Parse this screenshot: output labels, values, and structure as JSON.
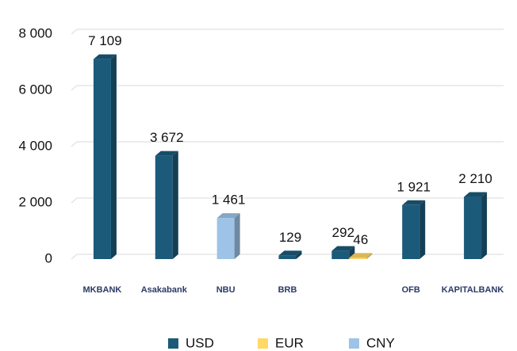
{
  "chart_data": {
    "type": "bar",
    "categories": [
      "MKBANK",
      "Asakabank",
      "NBU",
      "BRB",
      null,
      "OFB",
      "KAPITALBANK"
    ],
    "series": [
      {
        "name": "USD",
        "color": "#1c5a7a",
        "values": [
          7109,
          3672,
          null,
          129,
          292,
          1921,
          2210
        ],
        "value_labels": [
          "7 109",
          "3 672",
          null,
          "129",
          "292",
          "1 921",
          "2 210"
        ]
      },
      {
        "name": "EUR",
        "color": "#ffd966",
        "values": [
          null,
          null,
          null,
          null,
          46,
          null,
          null
        ],
        "value_labels": [
          null,
          null,
          null,
          null,
          "46",
          null,
          null
        ]
      },
      {
        "name": "CNY",
        "color": "#9dc3e6",
        "values": [
          null,
          null,
          1461,
          null,
          null,
          null,
          null
        ],
        "value_labels": [
          null,
          null,
          "1 461",
          null,
          null,
          null,
          null
        ]
      }
    ],
    "ylim": [
      0,
      8000
    ],
    "yticks": [
      0,
      {
        "value": 2000,
        "label": "2 000"
      },
      {
        "value": 4000,
        "label": "4 000"
      },
      {
        "value": 6000,
        "label": "6 000"
      },
      {
        "value": 8000,
        "label": "8 000"
      }
    ],
    "grid": true,
    "legend": "bottom"
  }
}
